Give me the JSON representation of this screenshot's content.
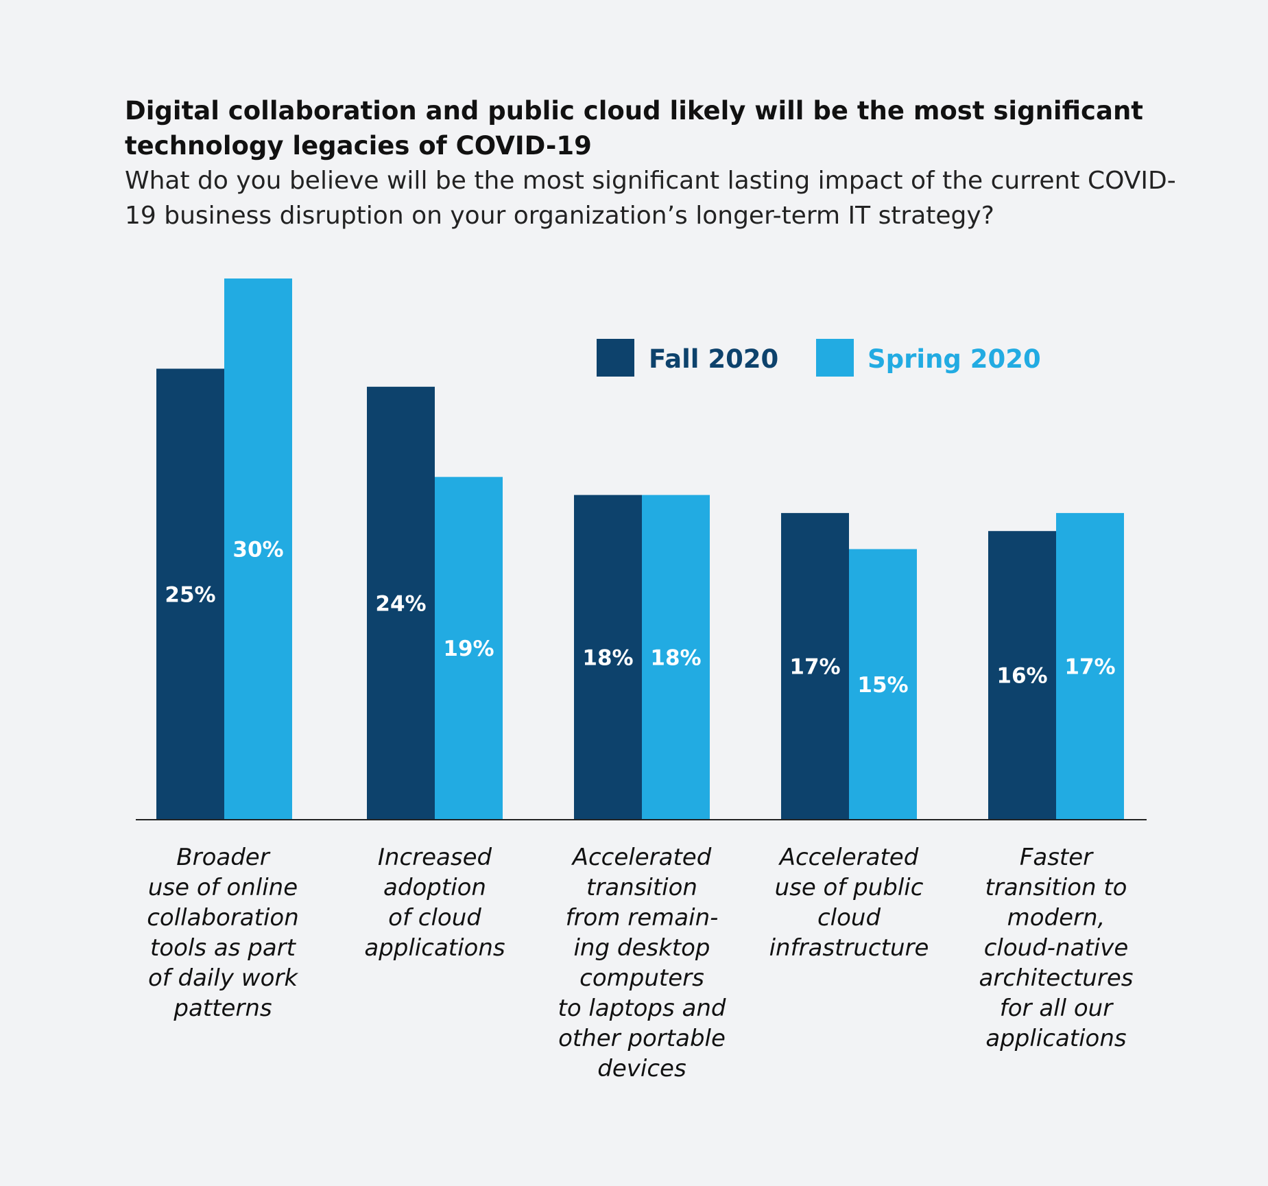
{
  "chart_data": {
    "type": "bar",
    "title": "Digital collaboration and public cloud likely will be the most significant technology legacies of COVID-19",
    "subtitle": "What do you believe will be the most significant lasting impact of the current COVID-19 business disruption on your organization’s longer-term IT strategy?",
    "categories": [
      "Broader\nuse of online\ncollaboration\ntools as part\nof daily work\npatterns",
      "Increased\nadoption\nof cloud\napplications",
      "Accelerated\ntransition\nfrom remain-\ning desktop\ncomputers\nto laptops and\nother portable\ndevices",
      "Accelerated\nuse of public\ncloud\ninfrastructure",
      "Faster\ntransition to\nmodern,\ncloud-native\narchitectures\nfor all our\napplications"
    ],
    "series": [
      {
        "name": "Fall 2020",
        "color": "#0d426c",
        "values": [
          25,
          24,
          18,
          17,
          16
        ],
        "labels": [
          "25%",
          "24%",
          "18%",
          "17%",
          "16%"
        ]
      },
      {
        "name": "Spring 2020",
        "color": "#22abe2",
        "values": [
          30,
          19,
          18,
          15,
          17
        ],
        "labels": [
          "30%",
          "19%",
          "18%",
          "15%",
          "17%"
        ]
      }
    ],
    "ylim": [
      0,
      30
    ],
    "grid": false,
    "legend_position": "top-right"
  }
}
